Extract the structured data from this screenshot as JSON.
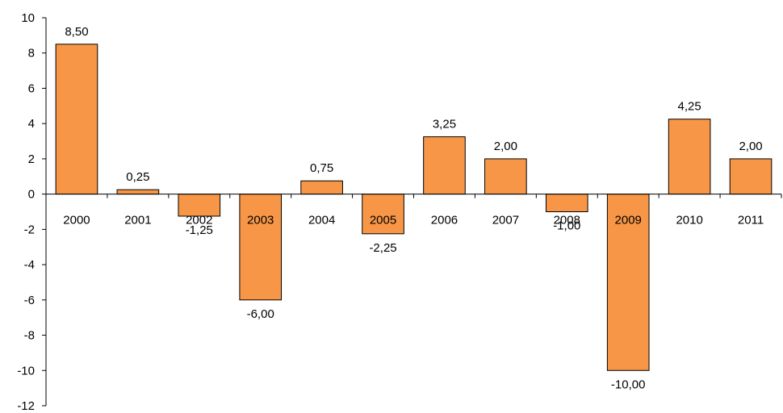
{
  "chart_data": {
    "type": "bar",
    "title": "",
    "xlabel": "",
    "ylabel": "",
    "categories": [
      "2000",
      "2001",
      "2002",
      "2003",
      "2004",
      "2005",
      "2006",
      "2007",
      "2008",
      "2009",
      "2010",
      "2011"
    ],
    "values": [
      8.5,
      0.25,
      -1.25,
      -6.0,
      0.75,
      -2.25,
      3.25,
      2.0,
      -1.0,
      -10.0,
      4.25,
      2.0
    ],
    "value_labels": [
      "8,50",
      "0,25",
      "-1,25",
      "-6,00",
      "0,75",
      "-2,25",
      "3,25",
      "2,00",
      "-1,00",
      "-10,00",
      "4,25",
      "2,00"
    ],
    "ylim": [
      -12,
      10
    ],
    "yticks": [
      10,
      8,
      6,
      4,
      2,
      0,
      -2,
      -4,
      -6,
      -8,
      -10,
      -12
    ],
    "ytick_labels": [
      "10",
      "8",
      "6",
      "4",
      "2",
      "0",
      "-2",
      "-4",
      "-6",
      "-8",
      "-10",
      "-12"
    ],
    "grid": false,
    "legend": "none",
    "bar_color": "#F79646",
    "bar_edge_color": "#000000"
  }
}
